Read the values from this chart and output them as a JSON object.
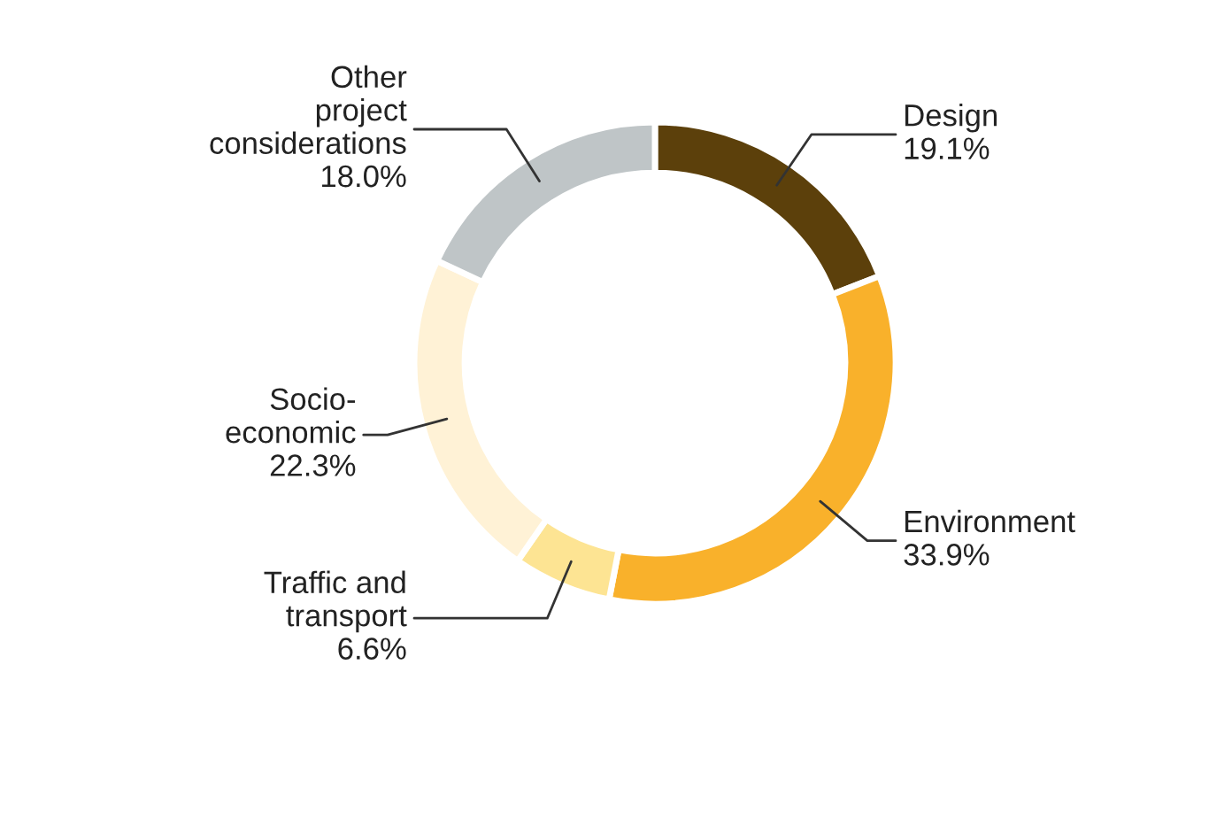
{
  "chart_data": {
    "type": "donut",
    "categories": [
      "Design",
      "Environment",
      "Traffic and\ntransport",
      "Socio-\neconomic",
      "Other\nproject\nconsiderations"
    ],
    "values": [
      19.1,
      33.9,
      6.6,
      22.3,
      18.0
    ],
    "value_labels": [
      "19.1%",
      "33.9%",
      "6.6%",
      "22.3%",
      "18.0%"
    ],
    "colors": [
      "#5c400b",
      "#f9b12b",
      "#fde493",
      "#fff2d6",
      "#bfc5c7"
    ],
    "legend": false
  }
}
